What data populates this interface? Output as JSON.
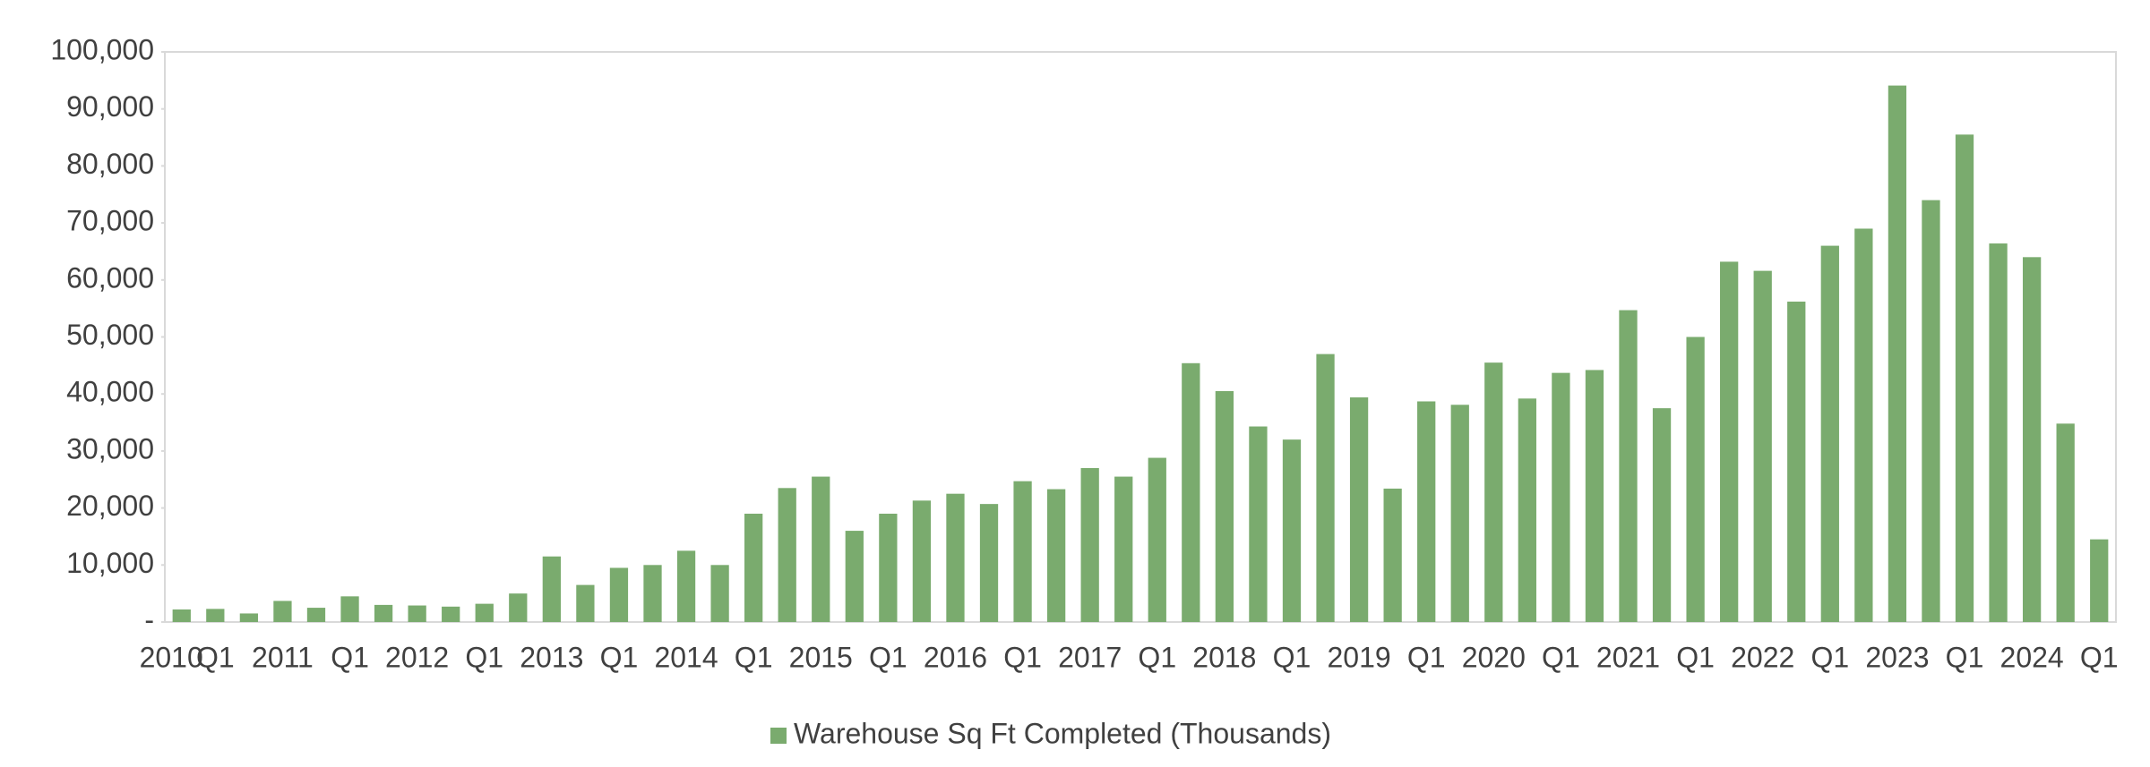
{
  "chart_data": {
    "type": "bar",
    "categories": [
      "2010",
      "Q1",
      null,
      "2011",
      null,
      "Q1",
      null,
      "2012",
      null,
      "Q1",
      null,
      "2013",
      null,
      "Q1",
      null,
      "2014",
      null,
      "Q1",
      null,
      "2015",
      null,
      "Q1",
      null,
      "2016",
      null,
      "Q1",
      null,
      "2017",
      null,
      "Q1",
      null,
      "2018",
      null,
      "Q1",
      null,
      "2019",
      null,
      "Q1",
      null,
      "2020",
      null,
      "Q1",
      null,
      "2021",
      null,
      "Q1",
      null,
      "2022",
      null,
      "Q1",
      null,
      "2023",
      null,
      "Q1",
      null,
      "2024",
      null,
      "Q1"
    ],
    "series": [
      {
        "name": "Warehouse Sq Ft Completed (Thousands)",
        "color": "#7aab6e",
        "values": [
          2200,
          2300,
          1500,
          3700,
          2500,
          4500,
          3000,
          2900,
          2700,
          3200,
          5000,
          11500,
          6500,
          9500,
          10000,
          12500,
          10000,
          19000,
          23500,
          25500,
          16000,
          19000,
          21300,
          22500,
          20700,
          24700,
          23300,
          27000,
          25500,
          28800,
          45400,
          40500,
          34300,
          32000,
          47000,
          39400,
          23400,
          38700,
          38100,
          45500,
          39200,
          43700,
          44200,
          54700,
          37500,
          50000,
          63200,
          61600,
          56200,
          66000,
          69000,
          94100,
          74000,
          85500,
          66400,
          64000,
          34800,
          14500
        ]
      }
    ],
    "ylim": [
      0,
      100000
    ],
    "yticks": [
      {
        "value": 0,
        "label": "-"
      },
      {
        "value": 10000,
        "label": "10,000"
      },
      {
        "value": 20000,
        "label": "20,000"
      },
      {
        "value": 30000,
        "label": "30,000"
      },
      {
        "value": 40000,
        "label": "40,000"
      },
      {
        "value": 50000,
        "label": "50,000"
      },
      {
        "value": 60000,
        "label": "60,000"
      },
      {
        "value": 70000,
        "label": "70,000"
      },
      {
        "value": 80000,
        "label": "80,000"
      },
      {
        "value": 90000,
        "label": "90,000"
      },
      {
        "value": 100000,
        "label": "100,000"
      }
    ],
    "legend": "bottom"
  }
}
